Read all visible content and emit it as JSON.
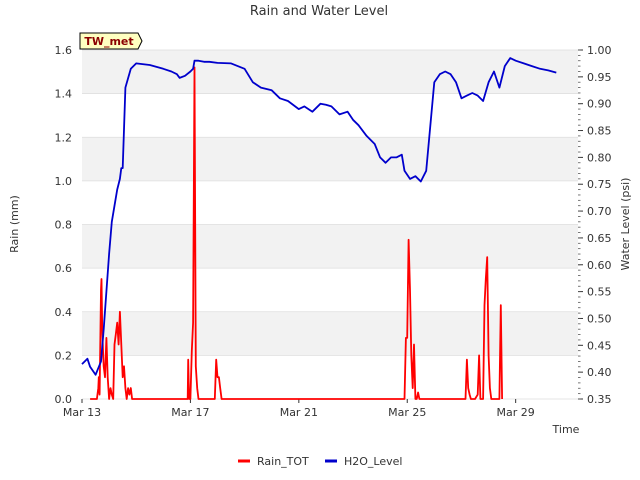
{
  "chart_data": {
    "type": "line",
    "title": "Rain and Water Level",
    "badge": "TW_met",
    "xlabel": "Time",
    "ylabel": "Rain (mm)",
    "y2label": "Water Level (psi)",
    "xlim": [
      0,
      18.3
    ],
    "ylim": [
      0,
      1.6
    ],
    "y2lim": [
      0.35,
      1.0
    ],
    "x_ticks": [
      {
        "x": 0,
        "label": "Mar 13"
      },
      {
        "x": 4,
        "label": "Mar 17"
      },
      {
        "x": 8,
        "label": "Mar 21"
      },
      {
        "x": 12,
        "label": "Mar 25"
      },
      {
        "x": 16,
        "label": "Mar 29"
      }
    ],
    "y_ticks": [
      "0.0",
      "0.2",
      "0.4",
      "0.6",
      "0.8",
      "1.0",
      "1.2",
      "1.4",
      "1.6"
    ],
    "y2_ticks": [
      "0.35",
      "0.40",
      "0.45",
      "0.50",
      "0.55",
      "0.60",
      "0.65",
      "0.70",
      "0.75",
      "0.80",
      "0.85",
      "0.90",
      "0.95",
      "1.00"
    ],
    "colors": {
      "rain": "#ff0000",
      "water": "#0000cc",
      "band": "#f2f2f2",
      "grid": "#dddddd",
      "badge_bg": "#ffffc0"
    },
    "series": [
      {
        "name": "Rain_TOT",
        "axis": "left",
        "x": [
          0.3,
          0.55,
          0.6,
          0.62,
          0.65,
          0.7,
          0.72,
          0.75,
          0.8,
          0.85,
          0.9,
          0.95,
          1.0,
          1.05,
          1.1,
          1.15,
          1.2,
          1.25,
          1.3,
          1.35,
          1.4,
          1.45,
          1.5,
          1.55,
          1.6,
          1.65,
          1.7,
          1.75,
          1.8,
          1.85,
          1.9,
          2.0,
          3.9,
          3.92,
          3.95,
          4.0,
          4.05,
          4.1,
          4.15,
          4.2,
          4.25,
          4.3,
          4.35,
          4.4,
          4.45,
          4.9,
          4.95,
          5.0,
          5.05,
          5.1,
          5.15,
          11.9,
          11.95,
          12.0,
          12.05,
          12.1,
          12.15,
          12.2,
          12.25,
          12.3,
          12.35,
          12.4,
          12.45,
          12.5,
          14.1,
          14.15,
          14.2,
          14.25,
          14.3,
          14.35,
          14.4,
          14.5,
          14.6,
          14.65,
          14.7,
          14.75,
          14.8,
          14.85,
          14.9,
          14.95,
          15.0,
          15.05,
          15.1,
          15.15,
          15.2,
          15.25,
          15.3,
          15.35,
          15.4,
          15.45,
          15.5
        ],
        "values": [
          0.0,
          0.0,
          0.05,
          0.1,
          0.02,
          0.5,
          0.55,
          0.3,
          0.15,
          0.1,
          0.28,
          0.1,
          0.0,
          0.05,
          0.02,
          0.0,
          0.25,
          0.3,
          0.35,
          0.25,
          0.4,
          0.25,
          0.1,
          0.15,
          0.05,
          0.0,
          0.05,
          0.02,
          0.05,
          0.0,
          0.0,
          0.0,
          0.0,
          0.18,
          0.0,
          0.0,
          0.22,
          0.35,
          1.52,
          0.15,
          0.05,
          0.0,
          0.0,
          0.0,
          0.0,
          0.0,
          0.18,
          0.1,
          0.1,
          0.05,
          0.0,
          0.0,
          0.28,
          0.28,
          0.73,
          0.5,
          0.2,
          0.05,
          0.25,
          0.0,
          0.0,
          0.03,
          0.0,
          0.0,
          0.0,
          0.0,
          0.18,
          0.05,
          0.02,
          0.0,
          0.0,
          0.0,
          0.02,
          0.2,
          0.0,
          0.0,
          0.0,
          0.43,
          0.55,
          0.65,
          0.2,
          0.05,
          0.0,
          0.0,
          0.0,
          0.0,
          0.0,
          0.0,
          0.0,
          0.43,
          0.0
        ]
      },
      {
        "name": "H2O_Level",
        "axis": "right",
        "x": [
          0.0,
          0.2,
          0.3,
          0.5,
          0.7,
          0.8,
          0.9,
          1.0,
          1.1,
          1.2,
          1.3,
          1.4,
          1.45,
          1.5,
          1.6,
          1.8,
          2.0,
          2.5,
          3.0,
          3.3,
          3.5,
          3.6,
          3.8,
          4.0,
          4.1,
          4.15,
          4.3,
          4.5,
          4.7,
          5.0,
          5.5,
          6.0,
          6.3,
          6.6,
          7.0,
          7.3,
          7.6,
          8.0,
          8.2,
          8.5,
          8.8,
          9.0,
          9.2,
          9.5,
          9.8,
          10.0,
          10.2,
          10.5,
          10.8,
          11.0,
          11.2,
          11.4,
          11.6,
          11.8,
          11.9,
          12.1,
          12.3,
          12.5,
          12.7,
          13.0,
          13.2,
          13.4,
          13.6,
          13.8,
          14.0,
          14.2,
          14.4,
          14.6,
          14.8,
          15.0,
          15.2,
          15.4,
          15.6,
          15.8,
          16.0,
          16.3,
          16.6,
          16.9,
          17.2,
          17.5
        ],
        "values": [
          0.415,
          0.425,
          0.41,
          0.395,
          0.42,
          0.48,
          0.55,
          0.62,
          0.68,
          0.71,
          0.74,
          0.76,
          0.78,
          0.78,
          0.93,
          0.965,
          0.975,
          0.972,
          0.965,
          0.96,
          0.955,
          0.948,
          0.952,
          0.96,
          0.965,
          0.98,
          0.98,
          0.978,
          0.978,
          0.976,
          0.975,
          0.965,
          0.94,
          0.93,
          0.925,
          0.91,
          0.905,
          0.89,
          0.895,
          0.885,
          0.9,
          0.898,
          0.895,
          0.88,
          0.885,
          0.87,
          0.86,
          0.84,
          0.825,
          0.8,
          0.79,
          0.8,
          0.8,
          0.805,
          0.775,
          0.76,
          0.765,
          0.755,
          0.775,
          0.94,
          0.955,
          0.96,
          0.955,
          0.94,
          0.91,
          0.915,
          0.92,
          0.915,
          0.905,
          0.94,
          0.96,
          0.93,
          0.97,
          0.985,
          0.98,
          0.975,
          0.97,
          0.965,
          0.962,
          0.958
        ]
      }
    ],
    "legend": [
      {
        "label": "Rain_TOT",
        "color": "#ff0000"
      },
      {
        "label": "H2O_Level",
        "color": "#0000cc"
      }
    ]
  }
}
